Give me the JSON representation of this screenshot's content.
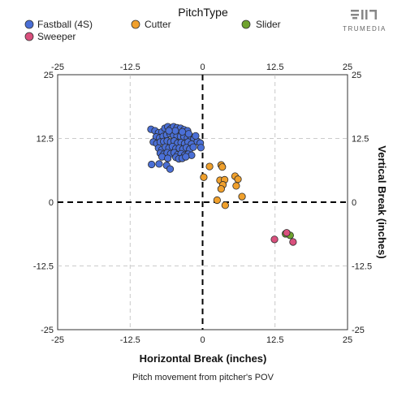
{
  "chart_data": {
    "type": "scatter",
    "legend_title": "PitchType",
    "xlabel": "Horizontal Break (inches)",
    "ylabel": "Vertical Break (inches)",
    "caption": "Pitch movement from pitcher's POV",
    "brand": "TRUMEDIA",
    "xlim": [
      -25,
      25
    ],
    "ylim": [
      -25,
      25
    ],
    "ticks": [
      -25,
      -12.5,
      0,
      12.5,
      25
    ],
    "tick_labels": [
      "-25",
      "-12.5",
      "0",
      "12.5",
      "25"
    ],
    "grid": true,
    "legend_position": "top",
    "series": [
      {
        "name": "Fastball (4S)",
        "color": "#4a6fd6",
        "points": [
          [
            -8.9,
            14.3
          ],
          [
            -8.2,
            14.0
          ],
          [
            -7.6,
            13.6
          ],
          [
            -7.0,
            13.8
          ],
          [
            -6.5,
            14.5
          ],
          [
            -6.0,
            14.8
          ],
          [
            -5.5,
            14.4
          ],
          [
            -5.0,
            14.8
          ],
          [
            -4.4,
            14.6
          ],
          [
            -3.8,
            14.5
          ],
          [
            -3.2,
            14.2
          ],
          [
            -2.6,
            14.0
          ],
          [
            -8.0,
            12.8
          ],
          [
            -7.4,
            12.6
          ],
          [
            -6.8,
            12.9
          ],
          [
            -6.2,
            13.2
          ],
          [
            -5.6,
            13.4
          ],
          [
            -5.0,
            13.1
          ],
          [
            -4.4,
            13.0
          ],
          [
            -3.8,
            12.9
          ],
          [
            -3.2,
            12.8
          ],
          [
            -2.6,
            12.6
          ],
          [
            -2.0,
            12.8
          ],
          [
            -1.5,
            12.4
          ],
          [
            -8.5,
            11.8
          ],
          [
            -7.9,
            11.5
          ],
          [
            -7.3,
            11.8
          ],
          [
            -6.7,
            11.9
          ],
          [
            -6.1,
            12.0
          ],
          [
            -5.5,
            11.8
          ],
          [
            -4.9,
            12.0
          ],
          [
            -4.3,
            11.6
          ],
          [
            -3.7,
            11.7
          ],
          [
            -3.1,
            11.5
          ],
          [
            -2.5,
            11.8
          ],
          [
            -1.9,
            11.4
          ],
          [
            -0.9,
            11.9
          ],
          [
            -0.4,
            11.6
          ],
          [
            -7.6,
            10.6
          ],
          [
            -7.0,
            10.3
          ],
          [
            -6.4,
            10.8
          ],
          [
            -5.8,
            10.6
          ],
          [
            -5.2,
            10.9
          ],
          [
            -4.6,
            10.5
          ],
          [
            -4.0,
            10.6
          ],
          [
            -3.4,
            10.4
          ],
          [
            -2.8,
            10.7
          ],
          [
            -2.2,
            10.4
          ],
          [
            -1.6,
            10.8
          ],
          [
            -0.3,
            10.7
          ],
          [
            -7.3,
            9.6
          ],
          [
            -6.7,
            9.4
          ],
          [
            -6.1,
            9.7
          ],
          [
            -5.5,
            9.5
          ],
          [
            -4.9,
            9.7
          ],
          [
            -4.3,
            9.3
          ],
          [
            -3.7,
            9.5
          ],
          [
            -3.1,
            9.2
          ],
          [
            -2.5,
            9.4
          ],
          [
            -1.9,
            9.2
          ],
          [
            -4.6,
            8.8
          ],
          [
            -4.1,
            8.5
          ],
          [
            -3.5,
            8.6
          ],
          [
            -2.9,
            8.9
          ],
          [
            -7.0,
            8.9
          ],
          [
            -6.0,
            8.6
          ],
          [
            -8.8,
            7.4
          ],
          [
            -7.5,
            7.5
          ],
          [
            -6.2,
            7.2
          ],
          [
            -5.6,
            6.5
          ],
          [
            -4.7,
            14.0
          ],
          [
            -3.5,
            13.8
          ],
          [
            -5.8,
            14.0
          ],
          [
            -2.4,
            13.4
          ],
          [
            -1.2,
            13.0
          ]
        ]
      },
      {
        "name": "Cutter",
        "color": "#f0a02c",
        "points": [
          [
            1.2,
            7.0
          ],
          [
            3.2,
            7.3
          ],
          [
            3.4,
            6.9
          ],
          [
            0.2,
            4.9
          ],
          [
            5.6,
            5.1
          ],
          [
            6.1,
            4.5
          ],
          [
            3.0,
            4.3
          ],
          [
            3.8,
            4.4
          ],
          [
            5.8,
            3.2
          ],
          [
            3.5,
            3.4
          ],
          [
            3.2,
            2.6
          ],
          [
            6.8,
            1.1
          ],
          [
            2.5,
            0.4
          ],
          [
            3.9,
            -0.6
          ]
        ]
      },
      {
        "name": "Slider",
        "color": "#6fa22e",
        "points": [
          [
            14.3,
            -6.2
          ],
          [
            15.1,
            -6.5
          ]
        ]
      },
      {
        "name": "Sweeper",
        "color": "#d9507d",
        "points": [
          [
            12.4,
            -7.3
          ],
          [
            15.6,
            -7.8
          ],
          [
            14.5,
            -6.0
          ]
        ]
      }
    ]
  }
}
